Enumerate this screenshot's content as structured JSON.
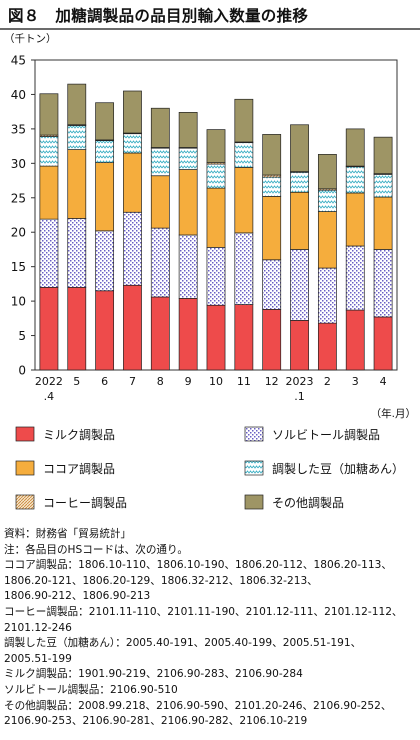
{
  "title": "図８　加糖調製品の品目別輸入数量の推移",
  "chart_data": {
    "type": "bar",
    "stacked": true,
    "unit_label": "（千トン）",
    "xlabel": "（年.月）",
    "ylim": [
      0,
      45
    ],
    "yticks": [
      0,
      5,
      10,
      15,
      20,
      25,
      30,
      35,
      40,
      45
    ],
    "grid": false,
    "legend_position": "bottom",
    "categories": [
      [
        "2022",
        ".4"
      ],
      [
        "5"
      ],
      [
        "6"
      ],
      [
        "7"
      ],
      [
        "8"
      ],
      [
        "9"
      ],
      [
        "10"
      ],
      [
        "11"
      ],
      [
        "12"
      ],
      [
        "2023",
        ".1"
      ],
      [
        "2"
      ],
      [
        "3"
      ],
      [
        "4"
      ]
    ],
    "series": [
      {
        "name": "ミルク調製品",
        "color": "#ee4b4b",
        "pattern": "solid",
        "values": [
          12.0,
          12.0,
          11.5,
          12.3,
          10.6,
          10.4,
          9.4,
          9.5,
          8.8,
          7.2,
          6.8,
          8.7,
          7.7
        ]
      },
      {
        "name": "ソルビトール調製品",
        "color": "#8a7fd6",
        "pattern": "dots",
        "values": [
          9.9,
          10.0,
          8.7,
          10.6,
          10.0,
          9.2,
          8.4,
          10.4,
          7.2,
          10.3,
          8.0,
          9.3,
          9.8
        ]
      },
      {
        "name": "ココア調製品",
        "color": "#f5ad3d",
        "pattern": "solid",
        "values": [
          7.7,
          10.0,
          9.9,
          8.6,
          7.6,
          9.5,
          8.6,
          9.5,
          9.2,
          8.3,
          8.2,
          7.7,
          7.6
        ]
      },
      {
        "name": "調製した豆（加糖あん）",
        "color": "#a8dfe8",
        "pattern": "zigzag",
        "values": [
          4.3,
          3.5,
          3.2,
          2.8,
          4.0,
          3.1,
          3.5,
          3.6,
          2.8,
          2.9,
          3.1,
          3.8,
          3.3
        ]
      },
      {
        "name": "コーヒー調製品",
        "color": "#d9a56b",
        "pattern": "hatch",
        "values": [
          0.2,
          0.1,
          0.1,
          0.1,
          0.1,
          0.1,
          0.2,
          0.1,
          0.3,
          0.1,
          0.2,
          0.1,
          0.1
        ]
      },
      {
        "name": "その他調製品",
        "color": "#9e9565",
        "pattern": "solid",
        "values": [
          6.0,
          5.9,
          5.4,
          6.1,
          5.7,
          5.1,
          4.8,
          6.2,
          5.9,
          6.8,
          5.0,
          5.4,
          5.3
        ]
      }
    ],
    "legend_order": [
      "ミルク調製品",
      "ソルビトール調製品",
      "ココア調製品",
      "調製した豆（加糖あん）",
      "コーヒー調製品",
      "その他調製品"
    ]
  },
  "notes": [
    {
      "label": "資料：",
      "text": "財務省「貿易統計」"
    },
    {
      "label": "注：",
      "text": "各品目のHSコードは、次の通り。"
    },
    {
      "label": "ココア調製品：",
      "text": "1806.10-110、1806.10-190、1806.20-112、1806.20-113、"
    },
    {
      "label": "",
      "text": "1806.20-121、1806.20-129、1806.32-212、1806.32-213、"
    },
    {
      "label": "",
      "text": "1806.90-212、1806.90-213"
    },
    {
      "label": "コーヒー調製品：",
      "text": "2101.11-110、2101.11-190、2101.12-111、2101.12-112、"
    },
    {
      "label": "",
      "text": "2101.12-246"
    },
    {
      "label": "調製した豆（加糖あん）：",
      "text": "2005.40-191、2005.40-199、2005.51-191、"
    },
    {
      "label": "",
      "text": "2005.51-199"
    },
    {
      "label": "ミルク調製品：",
      "text": "1901.90-219、2106.90-283、2106.90-284"
    },
    {
      "label": "ソルビトール調製品：",
      "text": "2106.90-510"
    },
    {
      "label": "その他調製品：",
      "text": "2008.99.218、2106.90-590、2101.20-246、2106.90-252、"
    },
    {
      "label": "",
      "text": "2106.90-253、2106.90-281、2106.90-282、2106.10-219"
    }
  ]
}
